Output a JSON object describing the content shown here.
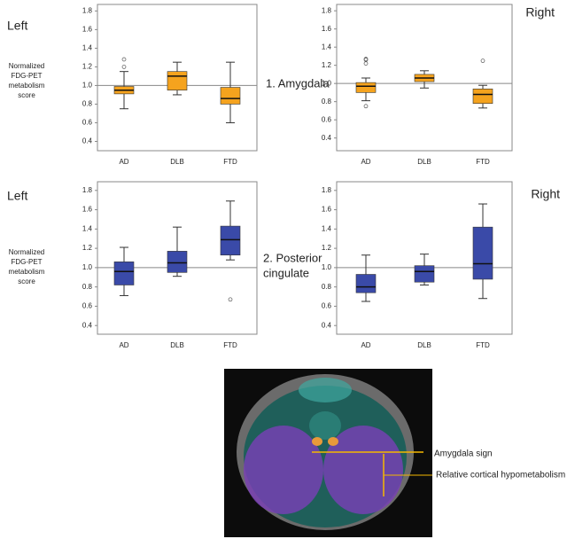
{
  "chart_data": [
    {
      "type": "box",
      "side": "Left",
      "y_label_lines": [
        "Normalized",
        "FDG-PET",
        "metabolism",
        "score"
      ],
      "categories": [
        "AD",
        "DLB",
        "FTD"
      ],
      "color": "#f5a31e",
      "reference_line": 1,
      "ylim": [
        0.3,
        1.87
      ],
      "yticks": [
        0.4,
        0.6,
        0.8,
        {
          "value": 1,
          "label": "1.0"
        },
        1.2,
        1.4,
        1.6,
        1.8
      ],
      "boxes": [
        {
          "whislo": 0.75,
          "q1": 0.91,
          "med": 0.95,
          "q3": 0.99,
          "whishi": 1.15,
          "fliers": [
            1.2,
            1.28
          ]
        },
        {
          "whislo": 0.9,
          "q1": 0.95,
          "med": 1.1,
          "q3": 1.15,
          "whishi": 1.25,
          "fliers": []
        },
        {
          "whislo": 0.6,
          "q1": 0.8,
          "med": 0.86,
          "q3": 0.98,
          "whishi": 1.25,
          "fliers": []
        }
      ]
    },
    {
      "type": "box",
      "side": "Right",
      "categories": [
        "AD",
        "DLB",
        "FTD"
      ],
      "color": "#f5a31e",
      "reference_line": 1,
      "ylim": [
        0.26,
        1.87
      ],
      "yticks": [
        0.4,
        0.6,
        0.8,
        {
          "value": 1,
          "label": "1.0"
        },
        1.2,
        1.4,
        1.6,
        1.8
      ],
      "boxes": [
        {
          "whislo": 0.81,
          "q1": 0.9,
          "med": 0.97,
          "q3": 1.01,
          "whishi": 1.06,
          "fliers": [
            0.75,
            1.22,
            1.26,
            1.27
          ]
        },
        {
          "whislo": 0.95,
          "q1": 1.02,
          "med": 1.06,
          "q3": 1.1,
          "whishi": 1.14,
          "fliers": []
        },
        {
          "whislo": 0.73,
          "q1": 0.78,
          "med": 0.88,
          "q3": 0.94,
          "whishi": 0.98,
          "fliers": [
            1.25
          ]
        }
      ]
    },
    {
      "type": "box",
      "side": "Left",
      "y_label_lines": [
        "Normalized",
        "FDG-PET",
        "metabolism",
        "score"
      ],
      "categories": [
        "AD",
        "DLB",
        "FTD"
      ],
      "color": "#3a4aa8",
      "reference_line": 1,
      "ylim": [
        0.31,
        1.89
      ],
      "yticks": [
        0.4,
        0.6,
        0.8,
        {
          "value": 1,
          "label": "1.0"
        },
        1.2,
        1.4,
        1.6,
        1.8
      ],
      "boxes": [
        {
          "whislo": 0.71,
          "q1": 0.82,
          "med": 0.96,
          "q3": 1.06,
          "whishi": 1.21,
          "fliers": []
        },
        {
          "whislo": 0.91,
          "q1": 0.95,
          "med": 1.05,
          "q3": 1.17,
          "whishi": 1.42,
          "fliers": []
        },
        {
          "whislo": 1.08,
          "q1": 1.13,
          "med": 1.29,
          "q3": 1.43,
          "whishi": 1.69,
          "fliers": [
            0.67
          ]
        }
      ]
    },
    {
      "type": "box",
      "side": "Right",
      "categories": [
        "AD",
        "DLB",
        "FTD"
      ],
      "color": "#3a4aa8",
      "reference_line": 1,
      "ylim": [
        0.31,
        1.89
      ],
      "yticks": [
        0.4,
        0.6,
        0.8,
        {
          "value": 1,
          "label": "1.0"
        },
        1.2,
        1.4,
        1.6,
        1.8
      ],
      "boxes": [
        {
          "whislo": 0.65,
          "q1": 0.74,
          "med": 0.8,
          "q3": 0.93,
          "whishi": 1.13,
          "fliers": []
        },
        {
          "whislo": 0.82,
          "q1": 0.85,
          "med": 0.96,
          "q3": 1.02,
          "whishi": 1.14,
          "fliers": []
        },
        {
          "whislo": 0.68,
          "q1": 0.88,
          "med": 1.04,
          "q3": 1.42,
          "whishi": 1.66,
          "fliers": []
        }
      ]
    }
  ],
  "row_labels": [
    [
      "1. Amygdala"
    ],
    [
      "2. Posterior",
      "cingulate"
    ]
  ],
  "image_annotations": [
    "Amygdala sign",
    "Relative cortical hypometabolism"
  ]
}
